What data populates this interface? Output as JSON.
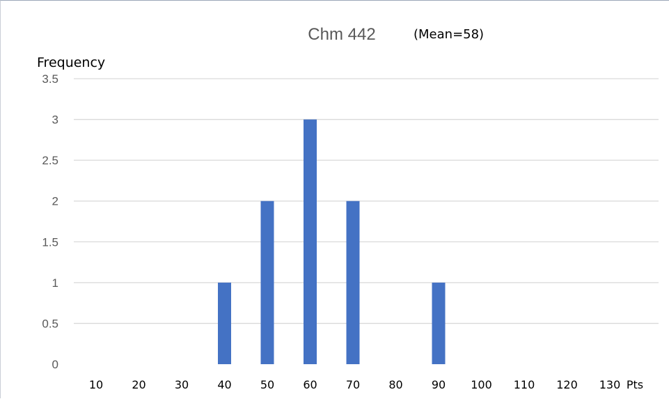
{
  "chart_data": {
    "type": "bar",
    "title": "Chm 442",
    "annotation": "(Mean=58)",
    "ylabel": "Frequency",
    "xlabel": "Pts",
    "categories": [
      "10",
      "20",
      "30",
      "40",
      "50",
      "60",
      "70",
      "80",
      "90",
      "100",
      "110",
      "120",
      "130"
    ],
    "values": [
      0,
      0,
      0,
      1,
      2,
      3,
      2,
      0,
      1,
      0,
      0,
      0,
      0
    ],
    "ylim": [
      0,
      3.5
    ],
    "yticks": [
      "0",
      "0.5",
      "1",
      "1.5",
      "2",
      "2.5",
      "3",
      "3.5"
    ],
    "grid": true,
    "legend": "none",
    "bar_color": "#4472c4"
  }
}
